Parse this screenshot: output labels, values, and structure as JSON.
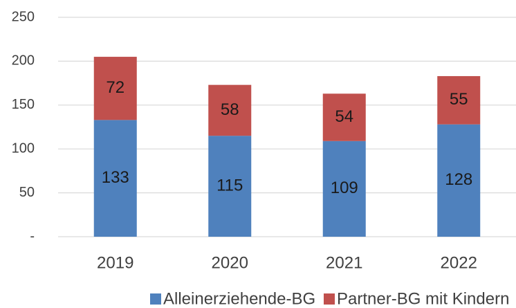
{
  "chart_data": {
    "type": "stacked_bar",
    "categories": [
      "2019",
      "2020",
      "2021",
      "2022"
    ],
    "series": [
      {
        "name": "Alleinerziehende-BG",
        "color": "#4f81bd",
        "values": [
          133,
          115,
          109,
          128
        ]
      },
      {
        "name": "Partner-BG mit Kindern",
        "color": "#c0504d",
        "values": [
          72,
          58,
          54,
          55
        ]
      }
    ],
    "ylim": [
      0,
      250
    ],
    "yticks": [
      {
        "value": 0,
        "label": "-"
      },
      50,
      100,
      150,
      200,
      250
    ],
    "grid": true,
    "legend": "bottom"
  }
}
